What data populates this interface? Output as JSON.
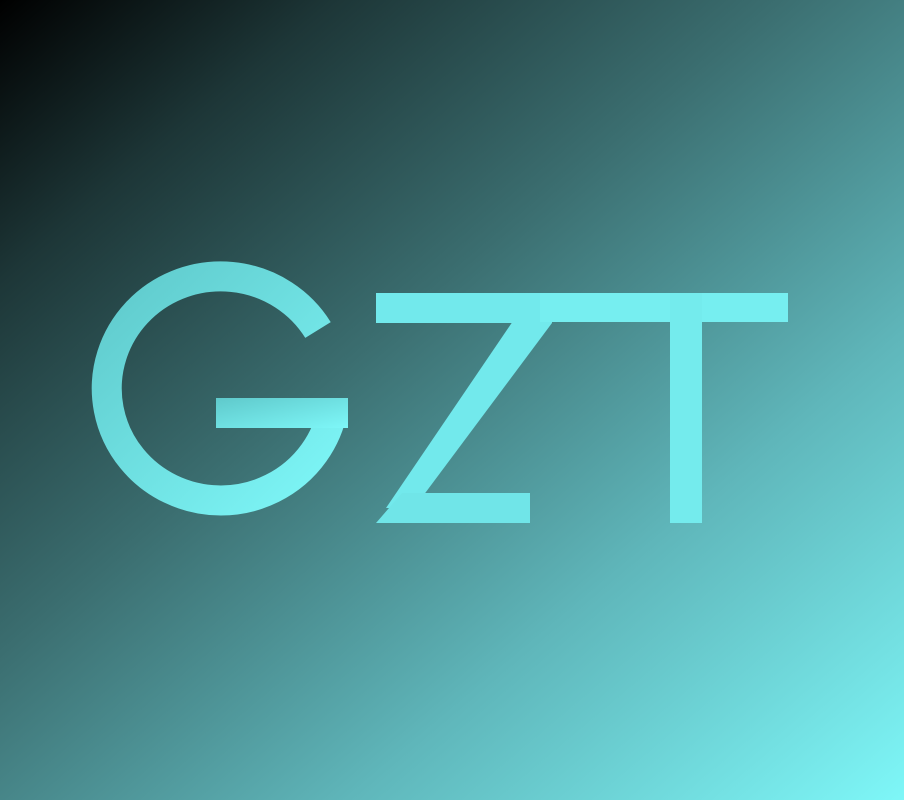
{
  "logo": {
    "text": "GZT",
    "color_light": "#7ef7f8",
    "color_dark": "#5fc9cb"
  },
  "background": {
    "from": "#000000",
    "to": "#7ef7f8"
  }
}
